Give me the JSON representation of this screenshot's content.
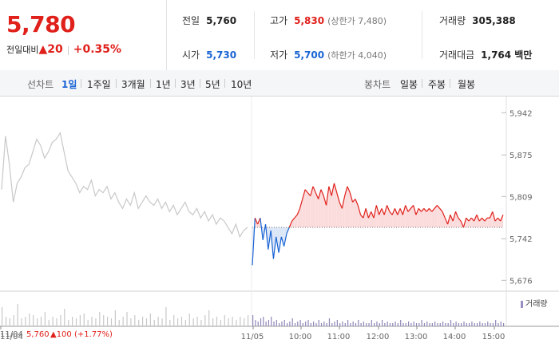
{
  "quote": {
    "price": "5,780",
    "change_label": "전일대비",
    "change_arrow": "▲",
    "change_amount": "20",
    "change_percent": "+0.35%"
  },
  "stats": {
    "prev_close_label": "전일",
    "prev_close": "5,760",
    "high_label": "고가",
    "high": "5,830",
    "upper_limit": "(상한가 7,480)",
    "volume_label": "거래량",
    "volume": "305,388",
    "open_label": "시가",
    "open": "5,730",
    "low_label": "저가",
    "low": "5,700",
    "lower_limit": "(하한가 4,040)",
    "amount_label": "거래대금",
    "amount": "1,764 백만"
  },
  "toolbar": {
    "line_label": "선차트",
    "line_tabs": [
      "1일",
      "1주일",
      "3개월",
      "1년",
      "3년",
      "5년",
      "10년"
    ],
    "active_tab": "1일",
    "candle_label": "봉차트",
    "candle_tabs": [
      "일봉",
      "주봉",
      "월봉"
    ]
  },
  "colors": {
    "up": "#e0201b",
    "down": "#1a64d4",
    "prev_day": "#c8c8c8",
    "fill_up": "#fbdcdc",
    "fill_down": "#dbe6f7"
  },
  "chart_data": {
    "type": "line",
    "ylim": [
      5660,
      5955
    ],
    "y_ticks": [
      "5,942",
      "5,875",
      "5,809",
      "5,742",
      "5,676"
    ],
    "y_tick_values": [
      5942,
      5875,
      5809,
      5742,
      5676
    ],
    "base_price": 5760,
    "x_ticks": [
      "11/04",
      "11/05",
      "10:00",
      "11:00",
      "12:00",
      "13:00",
      "14:00",
      "15:00"
    ],
    "prev_day_note": {
      "date": "11/04",
      "price": "5,760",
      "change": "▲100 (+1.77%)"
    },
    "volume_legend": "거래량",
    "prev_day_series": [
      5820,
      5905,
      5860,
      5800,
      5830,
      5840,
      5855,
      5860,
      5880,
      5900,
      5890,
      5870,
      5880,
      5895,
      5900,
      5910,
      5880,
      5850,
      5840,
      5830,
      5815,
      5825,
      5820,
      5835,
      5810,
      5820,
      5815,
      5825,
      5805,
      5815,
      5800,
      5790,
      5805,
      5795,
      5815,
      5790,
      5800,
      5810,
      5800,
      5795,
      5805,
      5790,
      5800,
      5785,
      5795,
      5780,
      5790,
      5800,
      5785,
      5780,
      5790,
      5775,
      5785,
      5770,
      5780,
      5765,
      5775,
      5770,
      5760,
      5750,
      5765,
      5745,
      5755,
      5760
    ],
    "today_series": [
      5700,
      5775,
      5765,
      5775,
      5740,
      5765,
      5725,
      5755,
      5710,
      5745,
      5720,
      5745,
      5730,
      5750,
      5760,
      5770,
      5775,
      5780,
      5790,
      5805,
      5820,
      5815,
      5810,
      5825,
      5815,
      5805,
      5820,
      5810,
      5795,
      5825,
      5810,
      5830,
      5815,
      5800,
      5790,
      5810,
      5825,
      5815,
      5800,
      5805,
      5795,
      5780,
      5775,
      5790,
      5775,
      5785,
      5775,
      5795,
      5780,
      5790,
      5780,
      5795,
      5785,
      5780,
      5790,
      5780,
      5790,
      5780,
      5795,
      5785,
      5790,
      5795,
      5780,
      5790,
      5785,
      5790,
      5785,
      5790,
      5785,
      5790,
      5795,
      5790,
      5785,
      5775,
      5765,
      5780,
      5770,
      5785,
      5775,
      5770,
      5760,
      5775,
      5770,
      5775,
      5770,
      5780,
      5770,
      5775,
      5770,
      5775,
      5775,
      5785,
      5770,
      5775,
      5770,
      5780
    ],
    "prev_day_volume": [
      0.6,
      0.3,
      0.25,
      0.35,
      0.7,
      0.25,
      0.3,
      0.4,
      0.35,
      0.25,
      0.3,
      0.45,
      0.2,
      0.3,
      0.25,
      0.35,
      0.55,
      0.2,
      0.3,
      0.25,
      0.35,
      0.4,
      0.2,
      0.3,
      0.25,
      0.45,
      0.35,
      0.3,
      0.25,
      0.5,
      0.2,
      0.3,
      0.45,
      0.25,
      0.35,
      0.2,
      0.3,
      0.25,
      0.4,
      0.2,
      0.3,
      0.25,
      0.6,
      0.2,
      0.35,
      0.25,
      0.3,
      0.2,
      0.4,
      0.25,
      0.3,
      0.2,
      0.35,
      0.5,
      0.25,
      0.3,
      0.2,
      0.35,
      0.25,
      0.3,
      0.2,
      0.3,
      0.25,
      0.35
    ],
    "today_volume": [
      0.35,
      0.2,
      0.15,
      0.25,
      0.3,
      0.15,
      0.2,
      0.3,
      0.15,
      0.2,
      0.1,
      0.15,
      0.2,
      0.1,
      0.15,
      0.25,
      0.1,
      0.15,
      0.2,
      0.1,
      0.15,
      0.2,
      0.1,
      0.15,
      0.1,
      0.2,
      0.1,
      0.15,
      0.1,
      0.25,
      0.1,
      0.15,
      0.2,
      0.1,
      0.15,
      0.1,
      0.2,
      0.1,
      0.15,
      0.1,
      0.2,
      0.1,
      0.15,
      0.1,
      0.1,
      0.2,
      0.1,
      0.15,
      0.1,
      0.2,
      0.1,
      0.15,
      0.1,
      0.1,
      0.15,
      0.1,
      0.2,
      0.1,
      0.1,
      0.15,
      0.1,
      0.15,
      0.1,
      0.1,
      0.2,
      0.1,
      0.15,
      0.1,
      0.1,
      0.15,
      0.1,
      0.1,
      0.15,
      0.1,
      0.1,
      0.2,
      0.1,
      0.15,
      0.1,
      0.1,
      0.15,
      0.1,
      0.1,
      0.15,
      0.1,
      0.1,
      0.15,
      0.1,
      0.1,
      0.15,
      0.1,
      0.1,
      0.2,
      0.1,
      0.15,
      0.1
    ]
  }
}
